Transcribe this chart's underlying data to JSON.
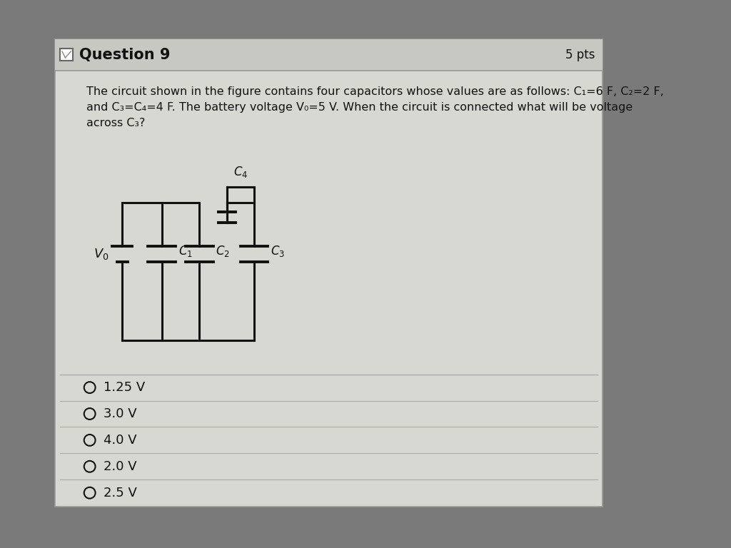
{
  "title": "Question 9",
  "pts": "5 pts",
  "question_text_line1": "The circuit shown in the figure contains four capacitors whose values are as follows: C₁=6 F, C₂=2 F,",
  "question_text_line2": "and C₃=C₄=4 F. The battery voltage V₀=5 V. When the circuit is connected what will be voltage",
  "question_text_line3": "across C₃?",
  "choices": [
    "1.25 V",
    "3.0 V",
    "4.0 V",
    "2.0 V",
    "2.5 V"
  ],
  "outer_bg": "#7a7a7a",
  "card_bg": "#d8d8d2",
  "header_bg": "#c8c8c2",
  "line_color": "#111111",
  "text_color": "#111111",
  "separator_color": "#aaaaaa",
  "circuit_area_bg": "#c5d8d8"
}
